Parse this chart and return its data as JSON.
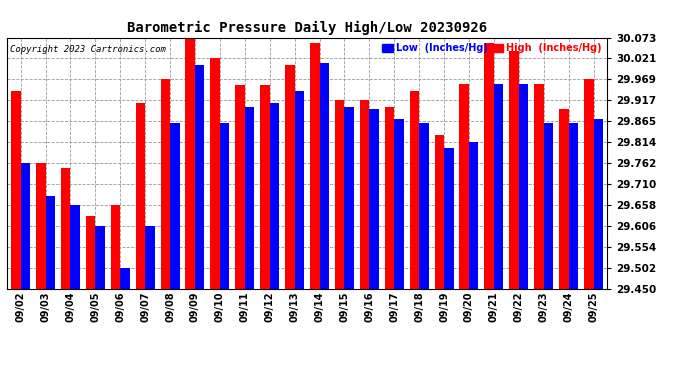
{
  "title": "Barometric Pressure Daily High/Low 20230926",
  "copyright": "Copyright 2023 Cartronics.com",
  "legend_low": "Low  (Inches/Hg)",
  "legend_high": "High  (Inches/Hg)",
  "dates": [
    "09/02",
    "09/03",
    "09/04",
    "09/05",
    "09/06",
    "09/07",
    "09/08",
    "09/09",
    "09/10",
    "09/11",
    "09/12",
    "09/13",
    "09/14",
    "09/15",
    "09/16",
    "09/17",
    "09/18",
    "09/19",
    "09/20",
    "09/21",
    "09/22",
    "09/23",
    "09/24",
    "09/25"
  ],
  "high_values": [
    29.94,
    29.762,
    29.75,
    29.63,
    29.658,
    29.91,
    29.97,
    30.073,
    30.021,
    29.955,
    29.955,
    30.005,
    30.06,
    29.917,
    29.917,
    29.9,
    29.94,
    29.83,
    29.958,
    30.06,
    30.04,
    29.958,
    29.895,
    29.969
  ],
  "low_values": [
    29.762,
    29.68,
    29.658,
    29.606,
    29.502,
    29.606,
    29.862,
    30.005,
    29.862,
    29.9,
    29.91,
    29.94,
    30.01,
    29.9,
    29.895,
    29.87,
    29.862,
    29.8,
    29.814,
    29.958,
    29.958,
    29.862,
    29.862,
    29.87
  ],
  "ylim_min": 29.45,
  "ylim_max": 30.073,
  "yticks": [
    29.45,
    29.502,
    29.554,
    29.606,
    29.658,
    29.71,
    29.762,
    29.814,
    29.865,
    29.917,
    29.969,
    30.021,
    30.073
  ],
  "ytick_labels": [
    "29.450",
    "29.502",
    "29.554",
    "29.606",
    "29.658",
    "29.710",
    "29.762",
    "29.814",
    "29.865",
    "29.917",
    "29.969",
    "30.021",
    "30.073"
  ],
  "bar_color_low": "#0000ff",
  "bar_color_high": "#ff0000",
  "bg_color": "#ffffff",
  "grid_color": "#999999",
  "title_color": "#000000",
  "copyright_color": "#000000",
  "legend_low_color": "#0000ff",
  "legend_high_color": "#ff0000",
  "bar_width": 0.38
}
